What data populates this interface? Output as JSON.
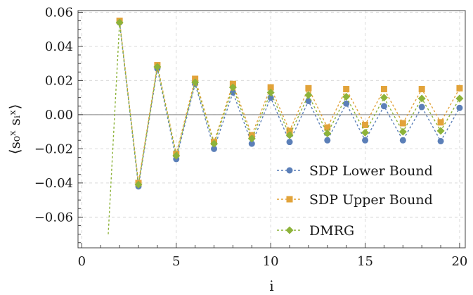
{
  "chart_data": {
    "type": "line",
    "xlabel": "i",
    "ylabel": "⟨s₀ˣ sᵢˣ⟩",
    "xlim": [
      -0.2,
      20.3
    ],
    "ylim": [
      -0.078,
      0.061
    ],
    "x_ticks": [
      0,
      5,
      10,
      15,
      20
    ],
    "x_tick_labels": [
      "0",
      "5",
      "10",
      "15",
      "20"
    ],
    "y_ticks": [
      0.06,
      0.04,
      0.02,
      0.0,
      -0.02,
      -0.04,
      -0.06
    ],
    "y_tick_labels": [
      "0.06",
      "0.04",
      "0.02",
      "0.00",
      "−0.02",
      "−0.04",
      "−0.06"
    ],
    "grid": true,
    "legend_position": "bottom-right",
    "x": [
      2,
      3,
      4,
      5,
      6,
      7,
      8,
      9,
      10,
      11,
      12,
      13,
      14,
      15,
      16,
      17,
      18,
      19,
      20
    ],
    "series": [
      {
        "name": "SDP Lower Bound",
        "color": "#5b7fb8",
        "marker": "circle",
        "values": [
          0.054,
          -0.042,
          0.027,
          -0.026,
          0.018,
          -0.02,
          0.013,
          -0.017,
          0.01,
          -0.016,
          0.008,
          -0.015,
          0.0065,
          -0.015,
          0.005,
          -0.015,
          0.0045,
          -0.0155,
          0.004
        ]
      },
      {
        "name": "SDP Upper Bound",
        "color": "#e2a33a",
        "marker": "square",
        "values": [
          0.055,
          -0.04,
          0.029,
          -0.023,
          0.021,
          -0.016,
          0.018,
          -0.012,
          0.016,
          -0.0095,
          0.0155,
          -0.0075,
          0.015,
          -0.006,
          0.015,
          -0.005,
          0.015,
          -0.0045,
          0.0155
        ]
      },
      {
        "name": "DMRG",
        "color": "#8db33a",
        "marker": "diamond",
        "x_start": 1.4,
        "y_start": -0.07,
        "values": [
          0.054,
          -0.041,
          0.028,
          -0.024,
          0.019,
          -0.017,
          0.016,
          -0.014,
          0.013,
          -0.012,
          0.0115,
          -0.011,
          0.0105,
          -0.0105,
          0.01,
          -0.01,
          0.0095,
          -0.0095,
          0.0095
        ]
      }
    ]
  }
}
